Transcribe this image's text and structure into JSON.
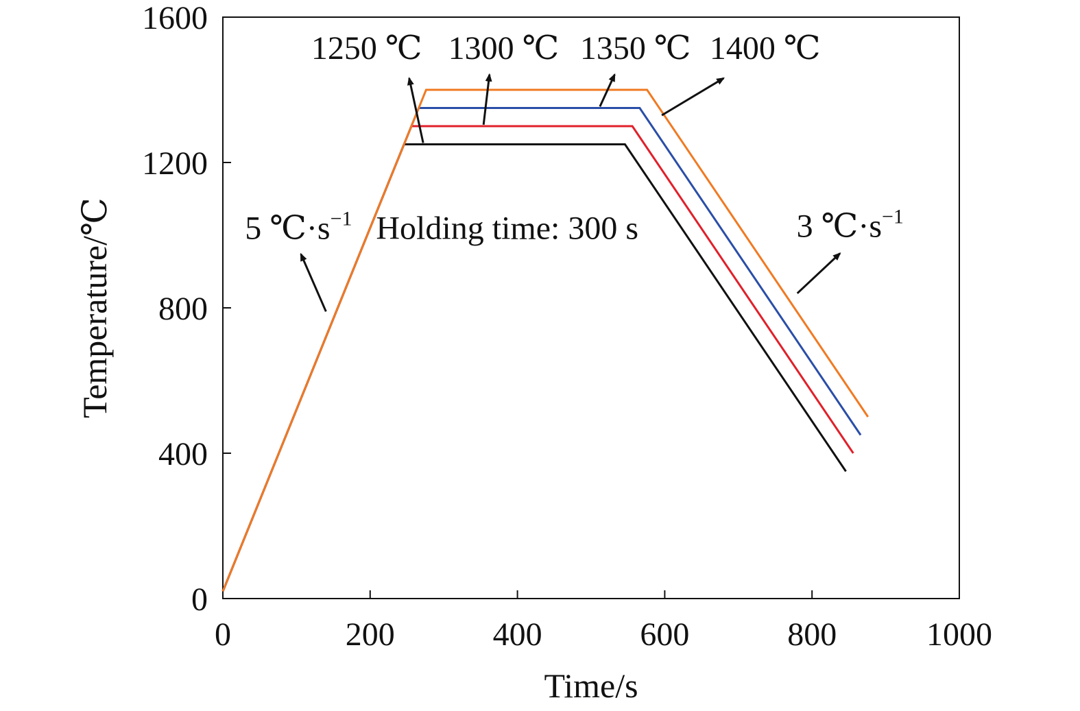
{
  "chart_data": {
    "type": "line",
    "xlabel": "Time/s",
    "ylabel": "Temperature/℃",
    "xlim": [
      0,
      1000
    ],
    "ylim": [
      0,
      1600
    ],
    "xticks": [
      0,
      200,
      400,
      600,
      800,
      1000
    ],
    "yticks": [
      0,
      400,
      800,
      1200,
      1600
    ],
    "xtick_labels": [
      "0",
      "200",
      "400",
      "600",
      "800",
      "1000"
    ],
    "ytick_labels": [
      "0",
      "400",
      "800",
      "1200",
      "1600"
    ],
    "grid": false,
    "legend": "none",
    "series": [
      {
        "label": "1250 ℃",
        "color": "#111111",
        "points": [
          [
            0,
            20
          ],
          [
            246,
            1250
          ],
          [
            546,
            1250
          ],
          [
            846,
            350
          ]
        ]
      },
      {
        "label": "1300 ℃",
        "color": "#e0202a",
        "points": [
          [
            0,
            20
          ],
          [
            256,
            1300
          ],
          [
            556,
            1300
          ],
          [
            856,
            400
          ]
        ]
      },
      {
        "label": "1350 ℃",
        "color": "#2a4ea8",
        "points": [
          [
            0,
            20
          ],
          [
            266,
            1350
          ],
          [
            566,
            1350
          ],
          [
            866,
            450
          ]
        ]
      },
      {
        "label": "1400 ℃",
        "color": "#f07a22",
        "points": [
          [
            0,
            20
          ],
          [
            276,
            1400
          ],
          [
            576,
            1400
          ],
          [
            876,
            500
          ]
        ]
      }
    ],
    "annotations": [
      {
        "text": "5 ℃·s",
        "superscript": "−1",
        "position": [
          30,
          990
        ],
        "arrow": {
          "from": [
            140,
            790
          ],
          "to": [
            106,
            948
          ]
        }
      },
      {
        "text": "Holding time: 300 s",
        "position": [
          208,
          990
        ]
      },
      {
        "text": "3 ℃·s",
        "superscript": "−1",
        "position": [
          779,
          995
        ],
        "arrow": {
          "from": [
            780,
            840
          ],
          "to": [
            838,
            950
          ]
        }
      }
    ],
    "series_labels": [
      {
        "series": 0,
        "text": "1250 ℃",
        "position": [
          120,
          1485
        ],
        "arrow": {
          "from": [
            272,
            1254
          ],
          "to": [
            253,
            1432
          ]
        }
      },
      {
        "series": 1,
        "text": "1300 ℃",
        "position": [
          306,
          1485
        ],
        "arrow": {
          "from": [
            354,
            1304
          ],
          "to": [
            362,
            1442
          ]
        }
      },
      {
        "series": 2,
        "text": "1350 ℃",
        "position": [
          485,
          1485
        ],
        "arrow": {
          "from": [
            512,
            1354
          ],
          "to": [
            532,
            1442
          ]
        }
      },
      {
        "series": 3,
        "text": "1400 ℃",
        "position": [
          661,
          1485
        ],
        "arrow": {
          "from": [
            596,
            1330
          ],
          "to": [
            680,
            1432
          ]
        }
      }
    ]
  }
}
